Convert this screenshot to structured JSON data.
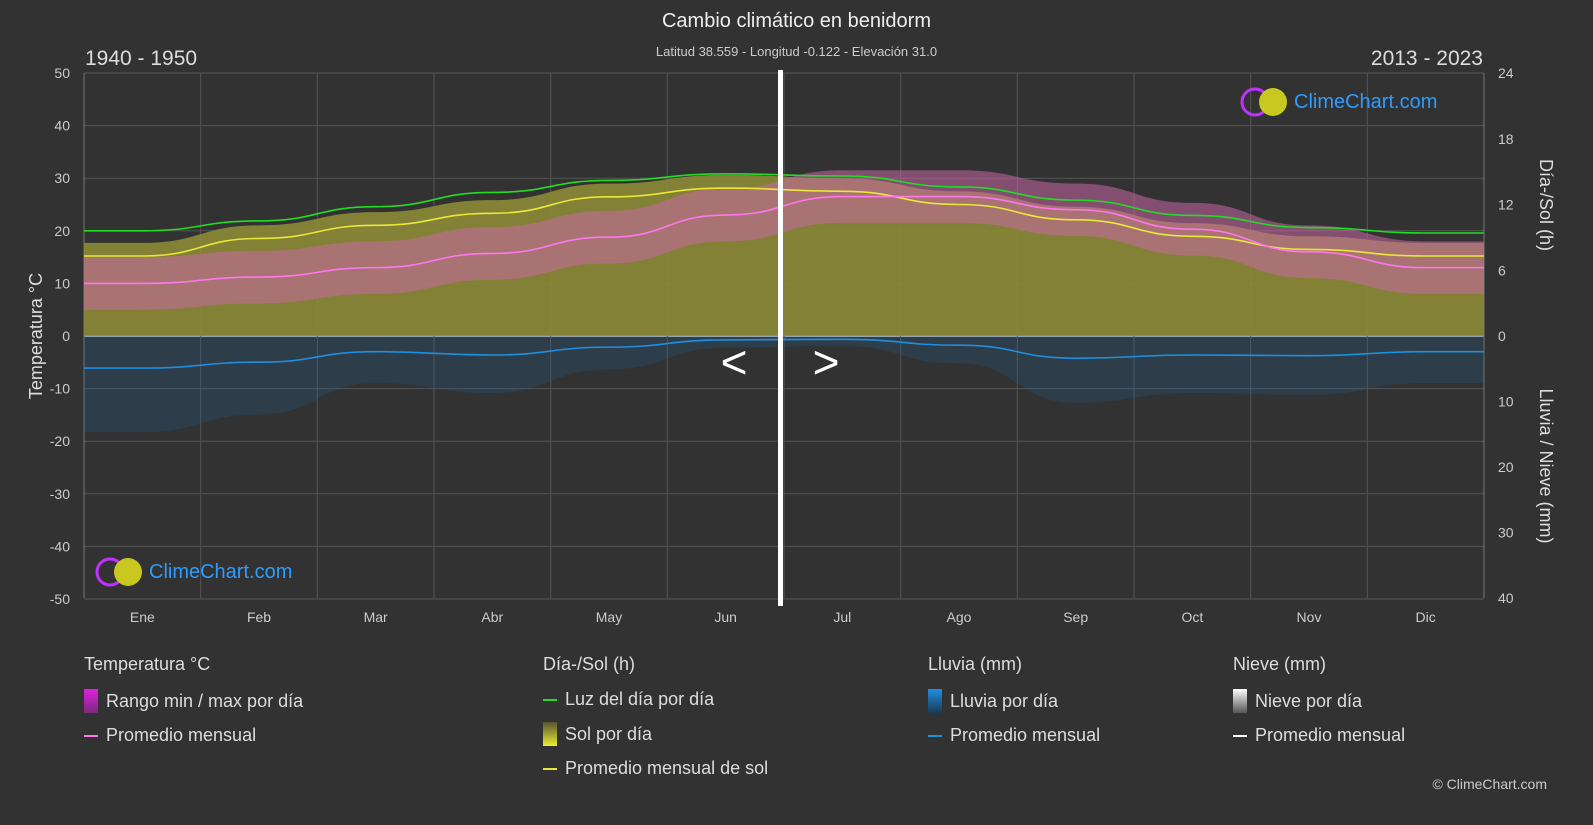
{
  "header": {
    "title": "Cambio climático en benidorm",
    "subtitle": "Latitud 38.559 - Longitud -0.122 - Elevación 31.0",
    "period_left": "1940 - 1950",
    "period_right": "2013 - 2023",
    "nav_prev": "<",
    "nav_next": ">"
  },
  "logo": {
    "text": "ClimeChart.com"
  },
  "copyright": "© ClimeChart.com",
  "colors": {
    "background": "#323232",
    "daylight": "#22dd22",
    "sun_avg": "#e8e838",
    "sun_area": "#8c8a36",
    "temp_avg": "#ff77ee",
    "temp_range": "#c866a6",
    "rain": "#1f8fe0",
    "snow": "#ffffff",
    "logo_text": "#2d9cff"
  },
  "chart_data": {
    "type": "line",
    "categories": [
      "Ene",
      "Feb",
      "Mar",
      "Abr",
      "May",
      "Jun",
      "Jul",
      "Ago",
      "Sep",
      "Oct",
      "Nov",
      "Dic"
    ],
    "y_left": {
      "label": "Temperatura °C",
      "range": [
        -50,
        50
      ],
      "ticks": [
        50,
        40,
        30,
        20,
        10,
        0,
        -10,
        -20,
        -30,
        -40,
        -50
      ]
    },
    "y_right_top": {
      "label": "Día-/Sol (h)",
      "range": [
        0,
        24
      ],
      "ticks": [
        24,
        18,
        12,
        6,
        0
      ]
    },
    "y_right_bottom": {
      "label": "Lluvia / Nieve (mm)",
      "range": [
        0,
        40
      ],
      "ticks": [
        0,
        10,
        20,
        30,
        40
      ]
    },
    "grid": true,
    "series": [
      {
        "name": "Luz del día por día",
        "axis": "hours",
        "values": [
          9.6,
          10.5,
          11.8,
          13.1,
          14.2,
          14.8,
          14.6,
          13.6,
          12.4,
          11.0,
          9.9,
          9.4
        ]
      },
      {
        "name": "Promedio mensual de sol",
        "axis": "hours",
        "values": [
          7.3,
          8.9,
          10.1,
          11.2,
          12.7,
          13.5,
          13.2,
          12.0,
          10.6,
          9.1,
          7.9,
          7.3
        ]
      },
      {
        "name": "Promedio mensual",
        "group": "Temperatura °C",
        "axis": "temp",
        "values": [
          10.0,
          11.2,
          13.0,
          15.7,
          18.8,
          23.0,
          26.5,
          26.5,
          24.0,
          20.3,
          16.0,
          13.0
        ]
      },
      {
        "name": "Promedio mensual",
        "group": "Lluvia (mm)",
        "axis": "rain",
        "values": [
          4.9,
          4.0,
          2.4,
          2.9,
          1.7,
          0.6,
          0.5,
          1.4,
          3.4,
          2.9,
          3.0,
          2.4
        ]
      }
    ]
  },
  "legend": {
    "groups": [
      {
        "title": "Temperatura °C",
        "items": [
          "Rango min / max por día",
          "Promedio mensual"
        ]
      },
      {
        "title": "Día-/Sol (h)",
        "items": [
          "Luz del día por día",
          "Sol por día",
          "Promedio mensual de sol"
        ]
      },
      {
        "title": "Lluvia (mm)",
        "items": [
          "Lluvia por día",
          "Promedio mensual"
        ]
      },
      {
        "title": "Nieve (mm)",
        "items": [
          "Nieve por día",
          "Promedio mensual"
        ]
      }
    ]
  }
}
